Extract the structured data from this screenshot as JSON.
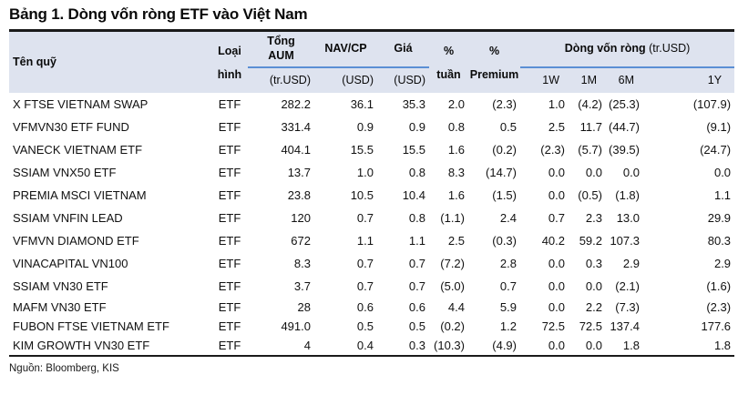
{
  "title": "Bảng 1. Dòng vốn ròng ETF vào Việt Nam",
  "source": "Nguồn: Bloomberg, KIS",
  "colors": {
    "header_bg": "#dee3ef",
    "rule_blue": "#5b8fd4",
    "border_dark": "#1a1a1a"
  },
  "table": {
    "headers": {
      "fund": "Tên quỹ",
      "type_line1": "Loại",
      "type_line2": "hình",
      "aum_line1": "Tổng",
      "aum_line2": "AUM",
      "aum_sub": "(tr.USD)",
      "nav": "NAV/CP",
      "nav_sub": "(USD)",
      "price": "Giá",
      "price_sub": "(USD)",
      "week_line1": "%",
      "week_line2": "tuần",
      "premium_line1": "%",
      "premium_line2": "Premium",
      "flow_title": "Dòng vốn ròng",
      "flow_unit": " (tr.USD)",
      "flow_1w": "1W",
      "flow_1m": "1M",
      "flow_6m": "6M",
      "flow_1y": "1Y"
    },
    "rows": [
      [
        "X FTSE VIETNAM SWAP",
        "ETF",
        "282.2",
        "36.1",
        "35.3",
        "2.0",
        "(2.3)",
        "1.0",
        "(4.2)",
        "(25.3)",
        "(107.9)"
      ],
      [
        "VFMVN30 ETF FUND",
        "ETF",
        "331.4",
        "0.9",
        "0.9",
        "0.8",
        "0.5",
        "2.5",
        "11.7",
        "(44.7)",
        "(9.1)"
      ],
      [
        "VANECK VIETNAM ETF",
        "ETF",
        "404.1",
        "15.5",
        "15.5",
        "1.6",
        "(0.2)",
        "(2.3)",
        "(5.7)",
        "(39.5)",
        "(24.7)"
      ],
      [
        "SSIAM VNX50 ETF",
        "ETF",
        "13.7",
        "1.0",
        "0.8",
        "8.3",
        "(14.7)",
        "0.0",
        "0.0",
        "0.0",
        "0.0"
      ],
      [
        "PREMIA MSCI VIETNAM",
        "ETF",
        "23.8",
        "10.5",
        "10.4",
        "1.6",
        "(1.5)",
        "0.0",
        "(0.5)",
        "(1.8)",
        "1.1"
      ],
      [
        "SSIAM VNFIN LEAD",
        "ETF",
        "120",
        "0.7",
        "0.8",
        "(1.1)",
        "2.4",
        "0.7",
        "2.3",
        "13.0",
        "29.9"
      ],
      [
        "VFMVN DIAMOND ETF",
        "ETF",
        "672",
        "1.1",
        "1.1",
        "2.5",
        "(0.3)",
        "40.2",
        "59.2",
        "107.3",
        "80.3"
      ],
      [
        "VINACAPITAL VN100",
        "ETF",
        "8.3",
        "0.7",
        "0.7",
        "(7.2)",
        "2.8",
        "0.0",
        "0.3",
        "2.9",
        "2.9"
      ],
      [
        "SSIAM VN30 ETF",
        "ETF",
        "3.7",
        "0.7",
        "0.7",
        "(5.0)",
        "0.7",
        "0.0",
        "0.0",
        "(2.1)",
        "(1.6)"
      ],
      [
        "MAFM VN30 ETF",
        "ETF",
        "28",
        "0.6",
        "0.6",
        "4.4",
        "5.9",
        "0.0",
        "2.2",
        "(7.3)",
        "(2.3)"
      ],
      [
        "FUBON FTSE VIETNAM ETF",
        "ETF",
        "491.0",
        "0.5",
        "0.5",
        "(0.2)",
        "1.2",
        "72.5",
        "72.5",
        "137.4",
        "177.6"
      ],
      [
        "KIM GROWTH VN30 ETF",
        "ETF",
        "4",
        "0.4",
        "0.3",
        "(10.3)",
        "(4.9)",
        "0.0",
        "0.0",
        "1.8",
        "1.8"
      ]
    ]
  }
}
